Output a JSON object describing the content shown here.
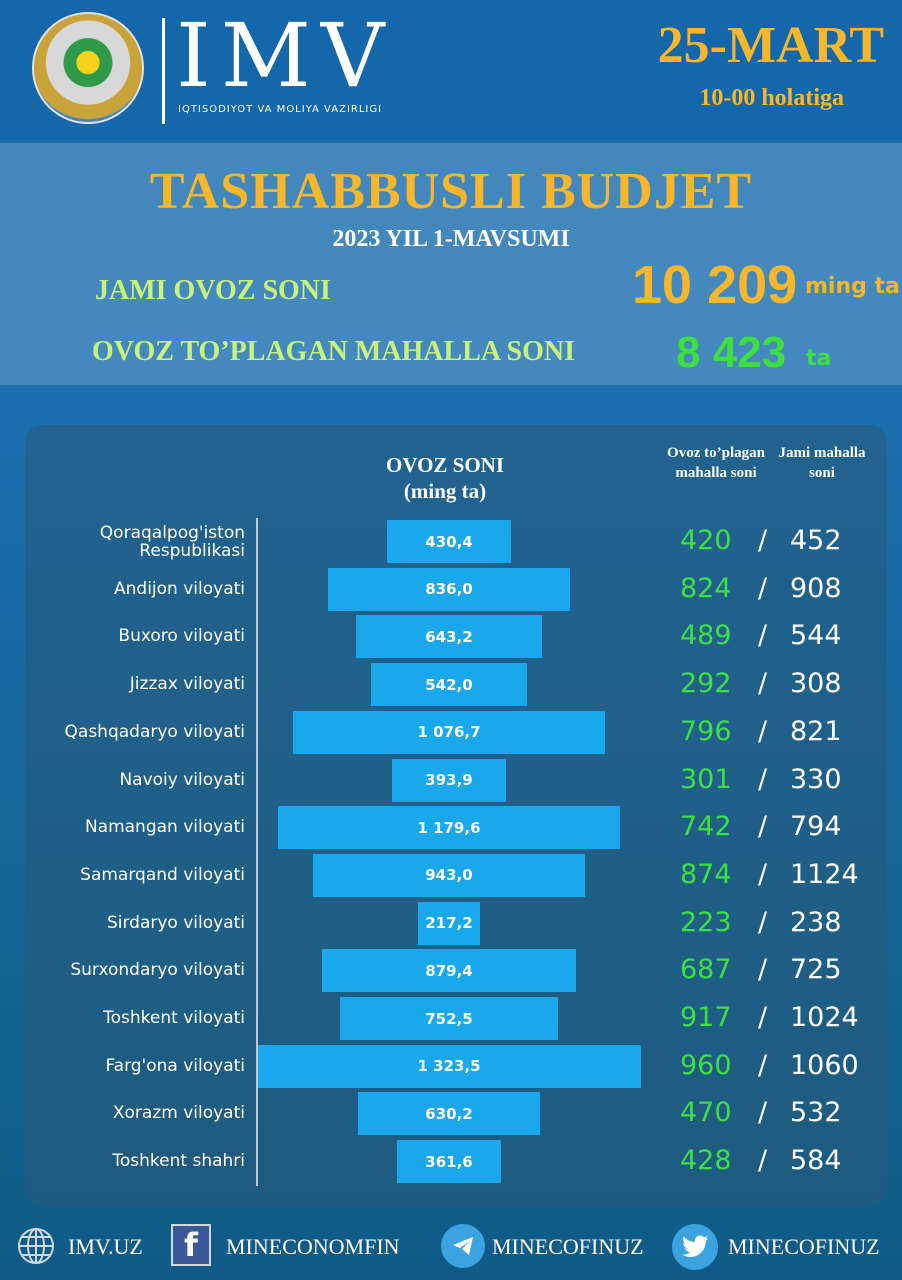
{
  "header": {
    "logo_text": "IMV",
    "logo_subtitle": "IQTISODIYOT VA MOLIYA VAZIRLIGI",
    "date": "25-MART",
    "time": "10-00 holatiga"
  },
  "title": "TASHABBUSLI BUDJET",
  "subtitle": "2023 YIL 1-MAVSUMI",
  "summary": {
    "total_label": "JAMI OVOZ SONI",
    "total_value": "10 209",
    "total_unit": "ming ta",
    "mahalla_label": "OVOZ TO’PLAGAN MAHALLA SONI",
    "mahalla_value": "8 423",
    "mahalla_unit": "ta"
  },
  "columns": {
    "votes": "OVOZ SONI",
    "votes_unit": "(ming ta)",
    "mahalla": "Ovoz to’plagan mahalla soni",
    "total": "Jami mahalla soni"
  },
  "colors": {
    "bar": "#1aa8ec",
    "accent": "#f8b72b",
    "green": "#3ee040"
  },
  "chart_data": {
    "type": "bar",
    "orientation": "horizontal-centered",
    "title": "OVOZ SONI",
    "ylabel": "(ming ta)",
    "categories": [
      "Qoraqalpog'iston Respublikasi",
      "Andijon viloyati",
      "Buxoro viloyati",
      "Jizzax viloyati",
      "Qashqadaryo viloyati",
      "Navoiy viloyati",
      "Namangan viloyati",
      "Samarqand viloyati",
      "Sirdaryo viloyati",
      "Surxondaryo viloyati",
      "Toshkent viloyati",
      "Farg'ona viloyati",
      "Xorazm viloyati",
      "Toshkent shahri"
    ],
    "values": [
      430.4,
      836.0,
      643.2,
      542.0,
      1076.7,
      393.9,
      1179.6,
      943.0,
      217.2,
      879.4,
      752.5,
      1323.5,
      630.2,
      361.6
    ],
    "value_labels": [
      "430,4",
      "836,0",
      "643,2",
      "542,0",
      "1 076,7",
      "393,9",
      "1 179,6",
      "943,0",
      "217,2",
      "879,4",
      "752,5",
      "1 323,5",
      "630,2",
      "361,6"
    ],
    "mahalla_voted": [
      "420",
      "824",
      "489",
      "292",
      "796",
      "301",
      "742",
      "874",
      "223",
      "687",
      "917",
      "960",
      "470",
      "428"
    ],
    "mahalla_total": [
      "452",
      "908",
      "544",
      "308",
      "821",
      "330",
      "794",
      "1124",
      "238",
      "725",
      "1024",
      "1060",
      "532",
      "584"
    ],
    "separator": "/"
  },
  "footer": {
    "items": [
      {
        "icon": "globe-icon",
        "label": "IMV.UZ"
      },
      {
        "icon": "facebook-icon",
        "label": "MINECONOMFIN"
      },
      {
        "icon": "telegram-icon",
        "label": "MINECOFINUZ"
      },
      {
        "icon": "twitter-icon",
        "label": "MINECOFINUZ"
      }
    ]
  }
}
